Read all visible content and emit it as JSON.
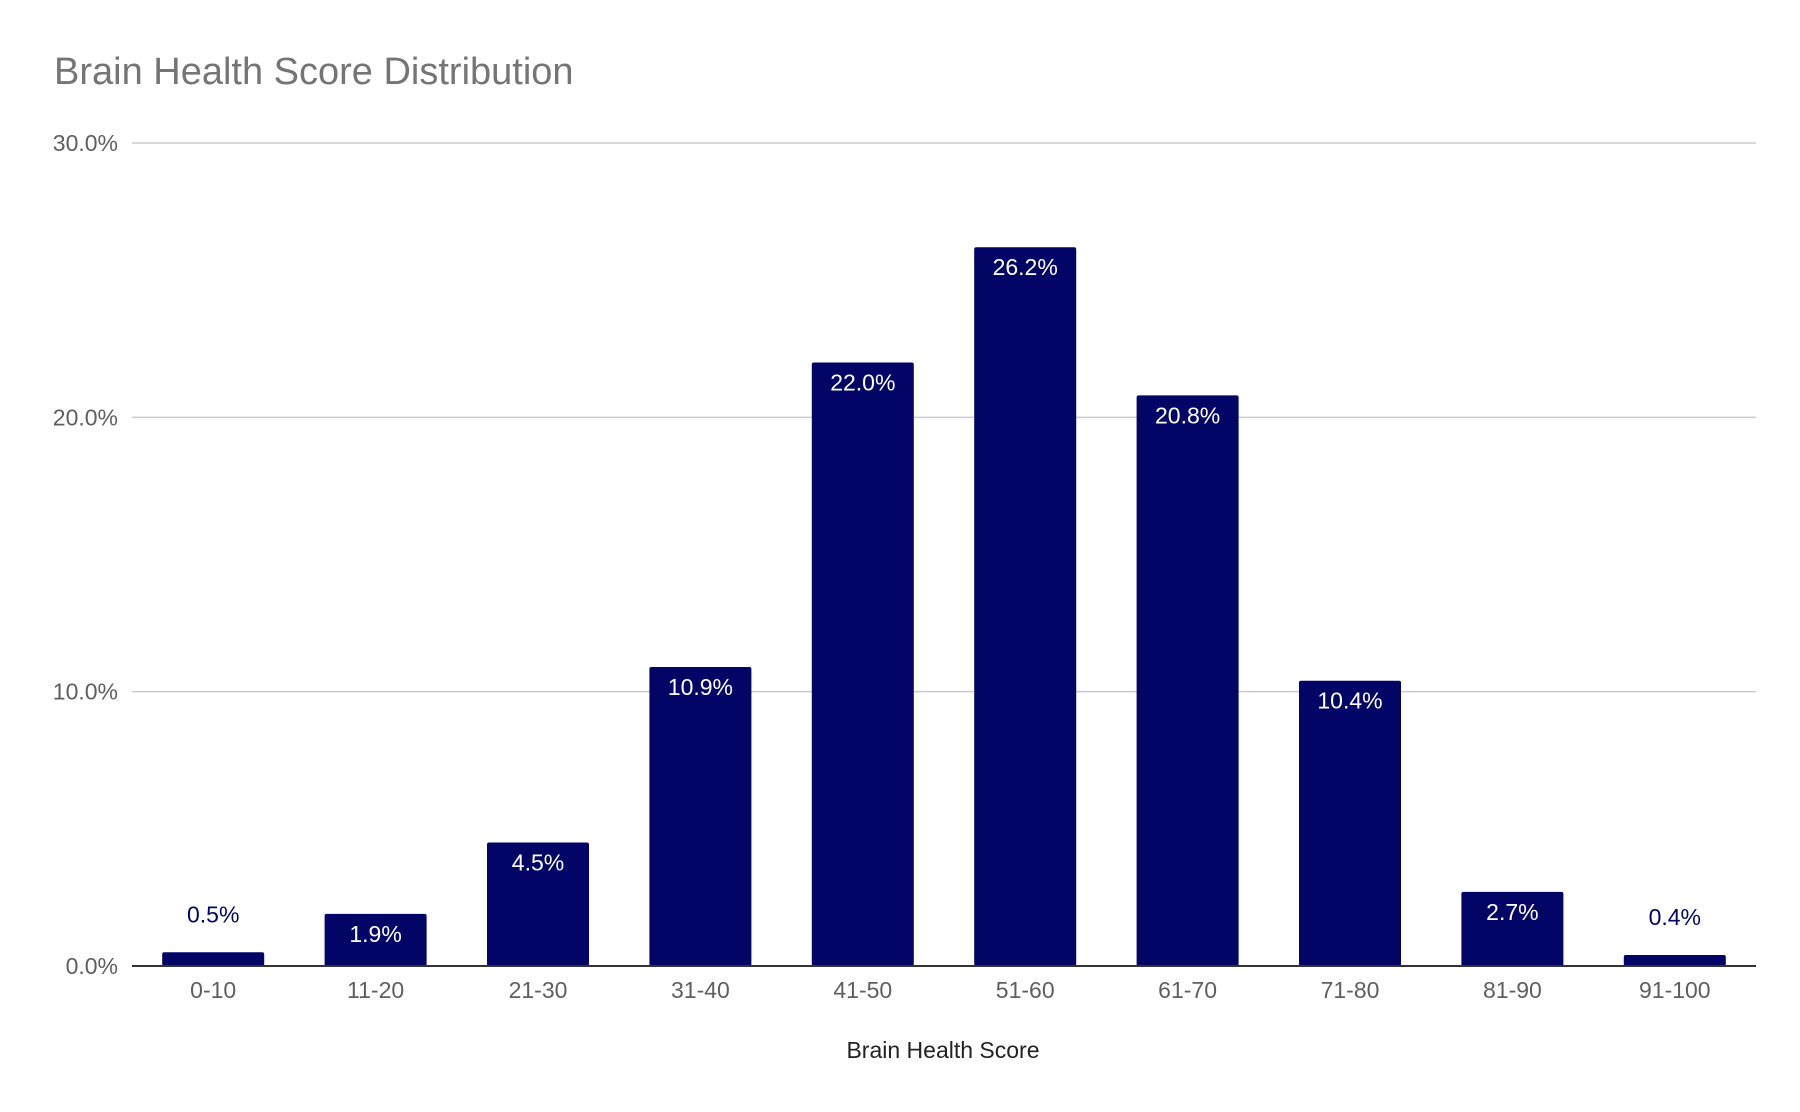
{
  "chart_data": {
    "type": "bar",
    "title": "Brain Health Score Distribution",
    "xlabel": "Brain Health Score",
    "ylabel": "",
    "categories": [
      "0-10",
      "11-20",
      "21-30",
      "31-40",
      "41-50",
      "51-60",
      "61-70",
      "71-80",
      "81-90",
      "91-100"
    ],
    "values": [
      0.5,
      1.9,
      4.5,
      10.9,
      22.0,
      26.2,
      20.8,
      10.4,
      2.7,
      0.4
    ],
    "data_labels": [
      "0.5%",
      "1.9%",
      "4.5%",
      "10.9%",
      "22.0%",
      "26.2%",
      "20.8%",
      "10.4%",
      "2.7%",
      "0.4%"
    ],
    "ylim": [
      0,
      30
    ],
    "yticks": [
      0,
      10,
      20,
      30
    ],
    "ytick_labels": [
      "0.0%",
      "10.0%",
      "20.0%",
      "30.0%"
    ],
    "grid": true,
    "legend": "none",
    "colors": {
      "bar": "#020466",
      "gridline": "#cccccc",
      "baseline": "#333333",
      "inside_label": "#ffffff",
      "outside_label": "#020466"
    }
  }
}
